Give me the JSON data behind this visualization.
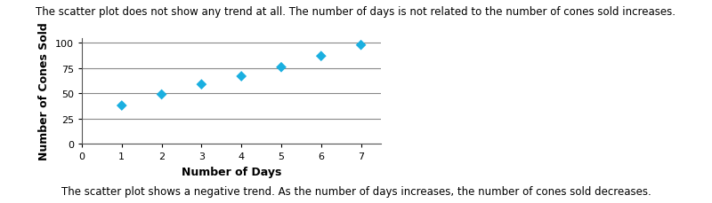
{
  "x": [
    1,
    2,
    3,
    4,
    5,
    6,
    7
  ],
  "y": [
    38,
    49,
    59,
    67,
    76,
    87,
    98
  ],
  "marker_color": "#1AAFE0",
  "marker": "D",
  "marker_size": 6,
  "xlabel": "Number of Days",
  "ylabel": "Number of Cones Sold",
  "xlim": [
    0,
    7.5
  ],
  "ylim": [
    0,
    105
  ],
  "xticks": [
    0,
    1,
    2,
    3,
    4,
    5,
    6,
    7
  ],
  "yticks": [
    0,
    25,
    50,
    75,
    100
  ],
  "top_text": "The scatter plot does not show any trend at all. The number of days is not related to the number of cones sold increases.",
  "bottom_text": "The scatter plot shows a negative trend. As the number of days increases, the number of cones sold decreases.",
  "top_fontsize": 8.5,
  "bottom_fontsize": 8.5,
  "axis_label_fontsize": 9,
  "tick_fontsize": 8,
  "grid_color": "#888888",
  "grid_linewidth": 0.8,
  "background_color": "#ffffff"
}
